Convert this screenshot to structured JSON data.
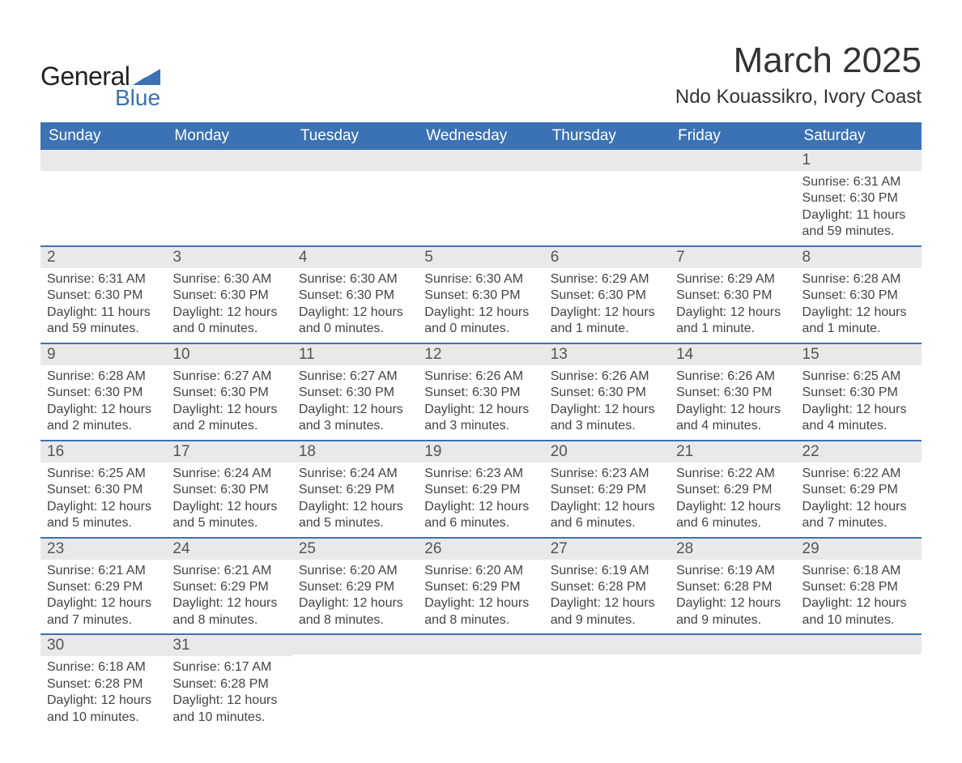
{
  "brand": {
    "text1": "General",
    "text2": "Blue",
    "primary_color": "#3b72b3",
    "text_color_dark": "#222222"
  },
  "header": {
    "month_title": "March 2025",
    "location": "Ndo Kouassikro, Ivory Coast"
  },
  "calendar": {
    "type": "table",
    "header_bg": "#3b72b3",
    "header_text_color": "#ffffff",
    "daynum_bg": "#e9e9e9",
    "row_divider_color": "#3b72b3",
    "body_text_color": "#444444",
    "font_family": "Arial",
    "header_fontsize": 19,
    "daynum_fontsize": 19,
    "body_fontsize": 16,
    "columns": [
      "Sunday",
      "Monday",
      "Tuesday",
      "Wednesday",
      "Thursday",
      "Friday",
      "Saturday"
    ],
    "leading_blanks": 6,
    "days": [
      {
        "n": 1,
        "sunrise": "6:31 AM",
        "sunset": "6:30 PM",
        "daylight": "11 hours and 59 minutes."
      },
      {
        "n": 2,
        "sunrise": "6:31 AM",
        "sunset": "6:30 PM",
        "daylight": "11 hours and 59 minutes."
      },
      {
        "n": 3,
        "sunrise": "6:30 AM",
        "sunset": "6:30 PM",
        "daylight": "12 hours and 0 minutes."
      },
      {
        "n": 4,
        "sunrise": "6:30 AM",
        "sunset": "6:30 PM",
        "daylight": "12 hours and 0 minutes."
      },
      {
        "n": 5,
        "sunrise": "6:30 AM",
        "sunset": "6:30 PM",
        "daylight": "12 hours and 0 minutes."
      },
      {
        "n": 6,
        "sunrise": "6:29 AM",
        "sunset": "6:30 PM",
        "daylight": "12 hours and 1 minute."
      },
      {
        "n": 7,
        "sunrise": "6:29 AM",
        "sunset": "6:30 PM",
        "daylight": "12 hours and 1 minute."
      },
      {
        "n": 8,
        "sunrise": "6:28 AM",
        "sunset": "6:30 PM",
        "daylight": "12 hours and 1 minute."
      },
      {
        "n": 9,
        "sunrise": "6:28 AM",
        "sunset": "6:30 PM",
        "daylight": "12 hours and 2 minutes."
      },
      {
        "n": 10,
        "sunrise": "6:27 AM",
        "sunset": "6:30 PM",
        "daylight": "12 hours and 2 minutes."
      },
      {
        "n": 11,
        "sunrise": "6:27 AM",
        "sunset": "6:30 PM",
        "daylight": "12 hours and 3 minutes."
      },
      {
        "n": 12,
        "sunrise": "6:26 AM",
        "sunset": "6:30 PM",
        "daylight": "12 hours and 3 minutes."
      },
      {
        "n": 13,
        "sunrise": "6:26 AM",
        "sunset": "6:30 PM",
        "daylight": "12 hours and 3 minutes."
      },
      {
        "n": 14,
        "sunrise": "6:26 AM",
        "sunset": "6:30 PM",
        "daylight": "12 hours and 4 minutes."
      },
      {
        "n": 15,
        "sunrise": "6:25 AM",
        "sunset": "6:30 PM",
        "daylight": "12 hours and 4 minutes."
      },
      {
        "n": 16,
        "sunrise": "6:25 AM",
        "sunset": "6:30 PM",
        "daylight": "12 hours and 5 minutes."
      },
      {
        "n": 17,
        "sunrise": "6:24 AM",
        "sunset": "6:30 PM",
        "daylight": "12 hours and 5 minutes."
      },
      {
        "n": 18,
        "sunrise": "6:24 AM",
        "sunset": "6:29 PM",
        "daylight": "12 hours and 5 minutes."
      },
      {
        "n": 19,
        "sunrise": "6:23 AM",
        "sunset": "6:29 PM",
        "daylight": "12 hours and 6 minutes."
      },
      {
        "n": 20,
        "sunrise": "6:23 AM",
        "sunset": "6:29 PM",
        "daylight": "12 hours and 6 minutes."
      },
      {
        "n": 21,
        "sunrise": "6:22 AM",
        "sunset": "6:29 PM",
        "daylight": "12 hours and 6 minutes."
      },
      {
        "n": 22,
        "sunrise": "6:22 AM",
        "sunset": "6:29 PM",
        "daylight": "12 hours and 7 minutes."
      },
      {
        "n": 23,
        "sunrise": "6:21 AM",
        "sunset": "6:29 PM",
        "daylight": "12 hours and 7 minutes."
      },
      {
        "n": 24,
        "sunrise": "6:21 AM",
        "sunset": "6:29 PM",
        "daylight": "12 hours and 8 minutes."
      },
      {
        "n": 25,
        "sunrise": "6:20 AM",
        "sunset": "6:29 PM",
        "daylight": "12 hours and 8 minutes."
      },
      {
        "n": 26,
        "sunrise": "6:20 AM",
        "sunset": "6:29 PM",
        "daylight": "12 hours and 8 minutes."
      },
      {
        "n": 27,
        "sunrise": "6:19 AM",
        "sunset": "6:28 PM",
        "daylight": "12 hours and 9 minutes."
      },
      {
        "n": 28,
        "sunrise": "6:19 AM",
        "sunset": "6:28 PM",
        "daylight": "12 hours and 9 minutes."
      },
      {
        "n": 29,
        "sunrise": "6:18 AM",
        "sunset": "6:28 PM",
        "daylight": "12 hours and 10 minutes."
      },
      {
        "n": 30,
        "sunrise": "6:18 AM",
        "sunset": "6:28 PM",
        "daylight": "12 hours and 10 minutes."
      },
      {
        "n": 31,
        "sunrise": "6:17 AM",
        "sunset": "6:28 PM",
        "daylight": "12 hours and 10 minutes."
      }
    ],
    "labels": {
      "sunrise": "Sunrise:",
      "sunset": "Sunset:",
      "daylight": "Daylight:"
    }
  }
}
